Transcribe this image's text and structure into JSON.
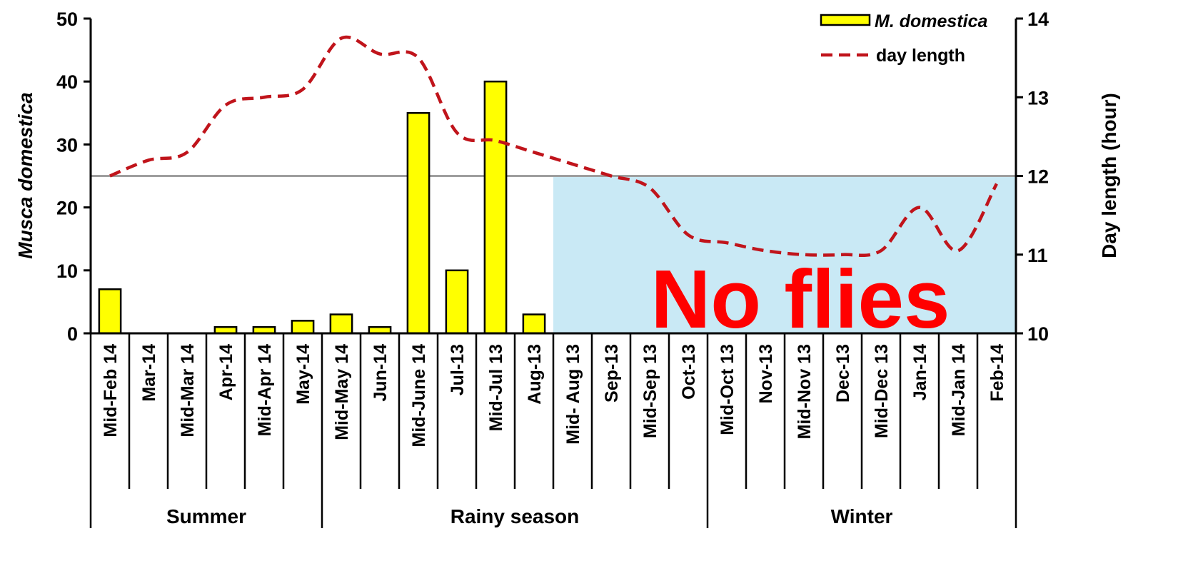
{
  "chart_data": {
    "type": "bar+line",
    "title": "",
    "categories": [
      "Mid-Feb 14",
      "Mar-14",
      "Mid-Mar 14",
      "Apr-14",
      "Mid-Apr 14",
      "May-14",
      "Mid-May 14",
      "Jun-14",
      "Mid-June 14",
      "Jul-13",
      "Mid-Jul 13",
      "Aug-13",
      "Mid- Aug 13",
      "Sep-13",
      "Mid-Sep 13",
      "Oct-13",
      "Mid-Oct 13",
      "Nov-13",
      "Mid-Nov 13",
      "Dec-13",
      "Mid-Dec 13",
      "Jan-14",
      "Mid-Jan 14",
      "Feb-14"
    ],
    "seasons": [
      {
        "label": "Summer",
        "start": 0,
        "end": 5
      },
      {
        "label": "Rainy season",
        "start": 6,
        "end": 15
      },
      {
        "label": "Winter",
        "start": 16,
        "end": 23
      }
    ],
    "series": [
      {
        "name": "M. domestica",
        "type": "bar",
        "axis": "left",
        "color": "#ffff00",
        "values": [
          7,
          0,
          0,
          1,
          1,
          2,
          3,
          1,
          35,
          10,
          40,
          3,
          0,
          0,
          0,
          0,
          0,
          0,
          0,
          0,
          0,
          0,
          0,
          0
        ]
      },
      {
        "name": "day length",
        "type": "line",
        "axis": "right",
        "color": "#c0141b",
        "style": "dashed",
        "values": [
          12.0,
          12.2,
          12.3,
          12.9,
          13.0,
          13.1,
          13.75,
          13.55,
          13.5,
          12.55,
          12.45,
          12.3,
          12.15,
          12.0,
          11.85,
          11.25,
          11.15,
          11.05,
          11.0,
          11.0,
          11.05,
          11.6,
          11.05,
          11.9
        ]
      }
    ],
    "ylabel": "Musca domestica",
    "ylim": [
      0,
      50
    ],
    "yticks": [
      0,
      10,
      20,
      30,
      40,
      50
    ],
    "y2label": "Day length (hour)",
    "y2lim": [
      10,
      14
    ],
    "y2ticks": [
      10,
      11,
      12,
      13,
      14
    ],
    "reference_line": {
      "axis": "right",
      "value": 12,
      "color": "#9e9e9e"
    },
    "shaded_region": {
      "from_category": 12,
      "to_category": 23,
      "color": "#c9e9f5",
      "label": "No flies",
      "label_color": "#ff0000"
    },
    "legend_position": "top-right",
    "grid": false
  }
}
